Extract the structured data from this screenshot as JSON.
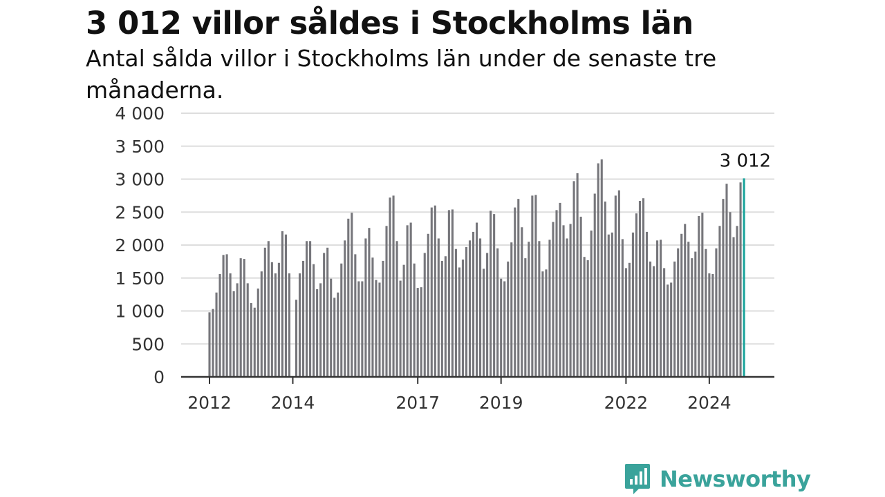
{
  "header": {
    "title": "3 012 villor såldes i Stockholms län",
    "subtitle": "Antal sålda villor i Stockholms län under de senaste tre månaderna."
  },
  "brand": {
    "name": "Newsworthy",
    "color": "#3aa39b"
  },
  "colors": {
    "bar": "#76767b",
    "highlight": "#1aa39b",
    "grid": "#dddddd",
    "axis": "#333333"
  },
  "chart_data": {
    "type": "bar",
    "ylim": [
      0,
      4000
    ],
    "yticks": [
      {
        "value": 0,
        "label": "0"
      },
      {
        "value": 500,
        "label": "500"
      },
      {
        "value": 1000,
        "label": "1 000"
      },
      {
        "value": 1500,
        "label": "1 500"
      },
      {
        "value": 2000,
        "label": "2 000"
      },
      {
        "value": 2500,
        "label": "2 500"
      },
      {
        "value": 3000,
        "label": "3 000"
      },
      {
        "value": 3500,
        "label": "3 500"
      },
      {
        "value": 4000,
        "label": "4 000"
      }
    ],
    "xticks": [
      {
        "index": 0,
        "label": "2012"
      },
      {
        "index": 24,
        "label": "2014"
      },
      {
        "index": 60,
        "label": "2017"
      },
      {
        "index": 84,
        "label": "2019"
      },
      {
        "index": 120,
        "label": "2022"
      },
      {
        "index": 144,
        "label": "2024"
      }
    ],
    "start": "2012-01",
    "values": [
      980,
      1030,
      1280,
      1560,
      1850,
      1860,
      1570,
      1300,
      1420,
      1800,
      1790,
      1420,
      1120,
      1050,
      1340,
      1600,
      1960,
      2060,
      1740,
      1570,
      1730,
      2210,
      2160,
      1570,
      null,
      1170,
      1570,
      1760,
      2060,
      2060,
      1710,
      1330,
      1420,
      1880,
      1960,
      1490,
      1200,
      1280,
      1720,
      2070,
      2400,
      2490,
      1860,
      1450,
      1450,
      2100,
      2260,
      1810,
      1470,
      1430,
      1760,
      2290,
      2720,
      2750,
      2060,
      1460,
      1700,
      2300,
      2340,
      1720,
      1350,
      1360,
      1880,
      2170,
      2570,
      2600,
      2100,
      1760,
      1830,
      2530,
      2540,
      1940,
      1660,
      1780,
      1970,
      2070,
      2200,
      2340,
      2100,
      1640,
      1880,
      2520,
      2470,
      1950,
      1490,
      1450,
      1750,
      2040,
      2570,
      2700,
      2270,
      1800,
      2050,
      2750,
      2760,
      2060,
      1600,
      1630,
      2080,
      2350,
      2530,
      2640,
      2300,
      2100,
      2320,
      2970,
      3090,
      2430,
      1820,
      1770,
      2220,
      2780,
      3240,
      3300,
      2660,
      2160,
      2190,
      2750,
      2830,
      2090,
      1650,
      1730,
      2190,
      2480,
      2670,
      2710,
      2200,
      1750,
      1680,
      2070,
      2080,
      1650,
      1400,
      1430,
      1750,
      1950,
      2170,
      2320,
      2050,
      1800,
      1900,
      2440,
      2490,
      1940,
      1570,
      1560,
      1950,
      2290,
      2700,
      2930,
      2500,
      2120,
      2290,
      2950,
      3012
    ],
    "highlight": {
      "index": 154,
      "value": 3012,
      "label": "3 012"
    }
  }
}
